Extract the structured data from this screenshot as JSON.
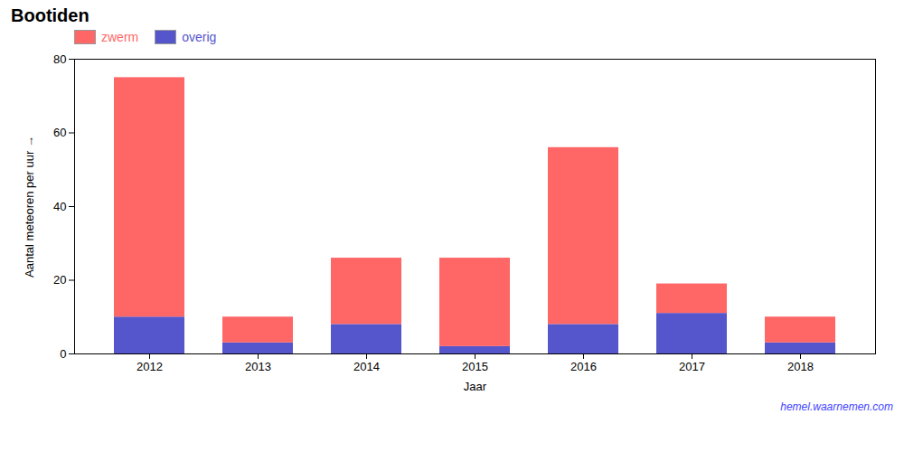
{
  "chart_data": {
    "type": "bar",
    "stacked": true,
    "title": "Bootiden",
    "xlabel": "Jaar",
    "ylabel": "Aantal meteoren per uur",
    "categories": [
      "2012",
      "2013",
      "2014",
      "2015",
      "2016",
      "2017",
      "2018"
    ],
    "series": [
      {
        "name": "zwerm",
        "color": "#FF6666",
        "values": [
          65,
          7,
          18,
          24,
          48,
          8,
          7
        ]
      },
      {
        "name": "overig",
        "color": "#5555CC",
        "values": [
          10,
          3,
          8,
          2,
          8,
          11,
          3
        ]
      }
    ],
    "ylim": [
      0,
      80
    ],
    "yticks": [
      0,
      20,
      40,
      60,
      80
    ],
    "grid": false,
    "legend": "upper-left",
    "annotations": [
      "hemel.waarnemen.com"
    ]
  }
}
